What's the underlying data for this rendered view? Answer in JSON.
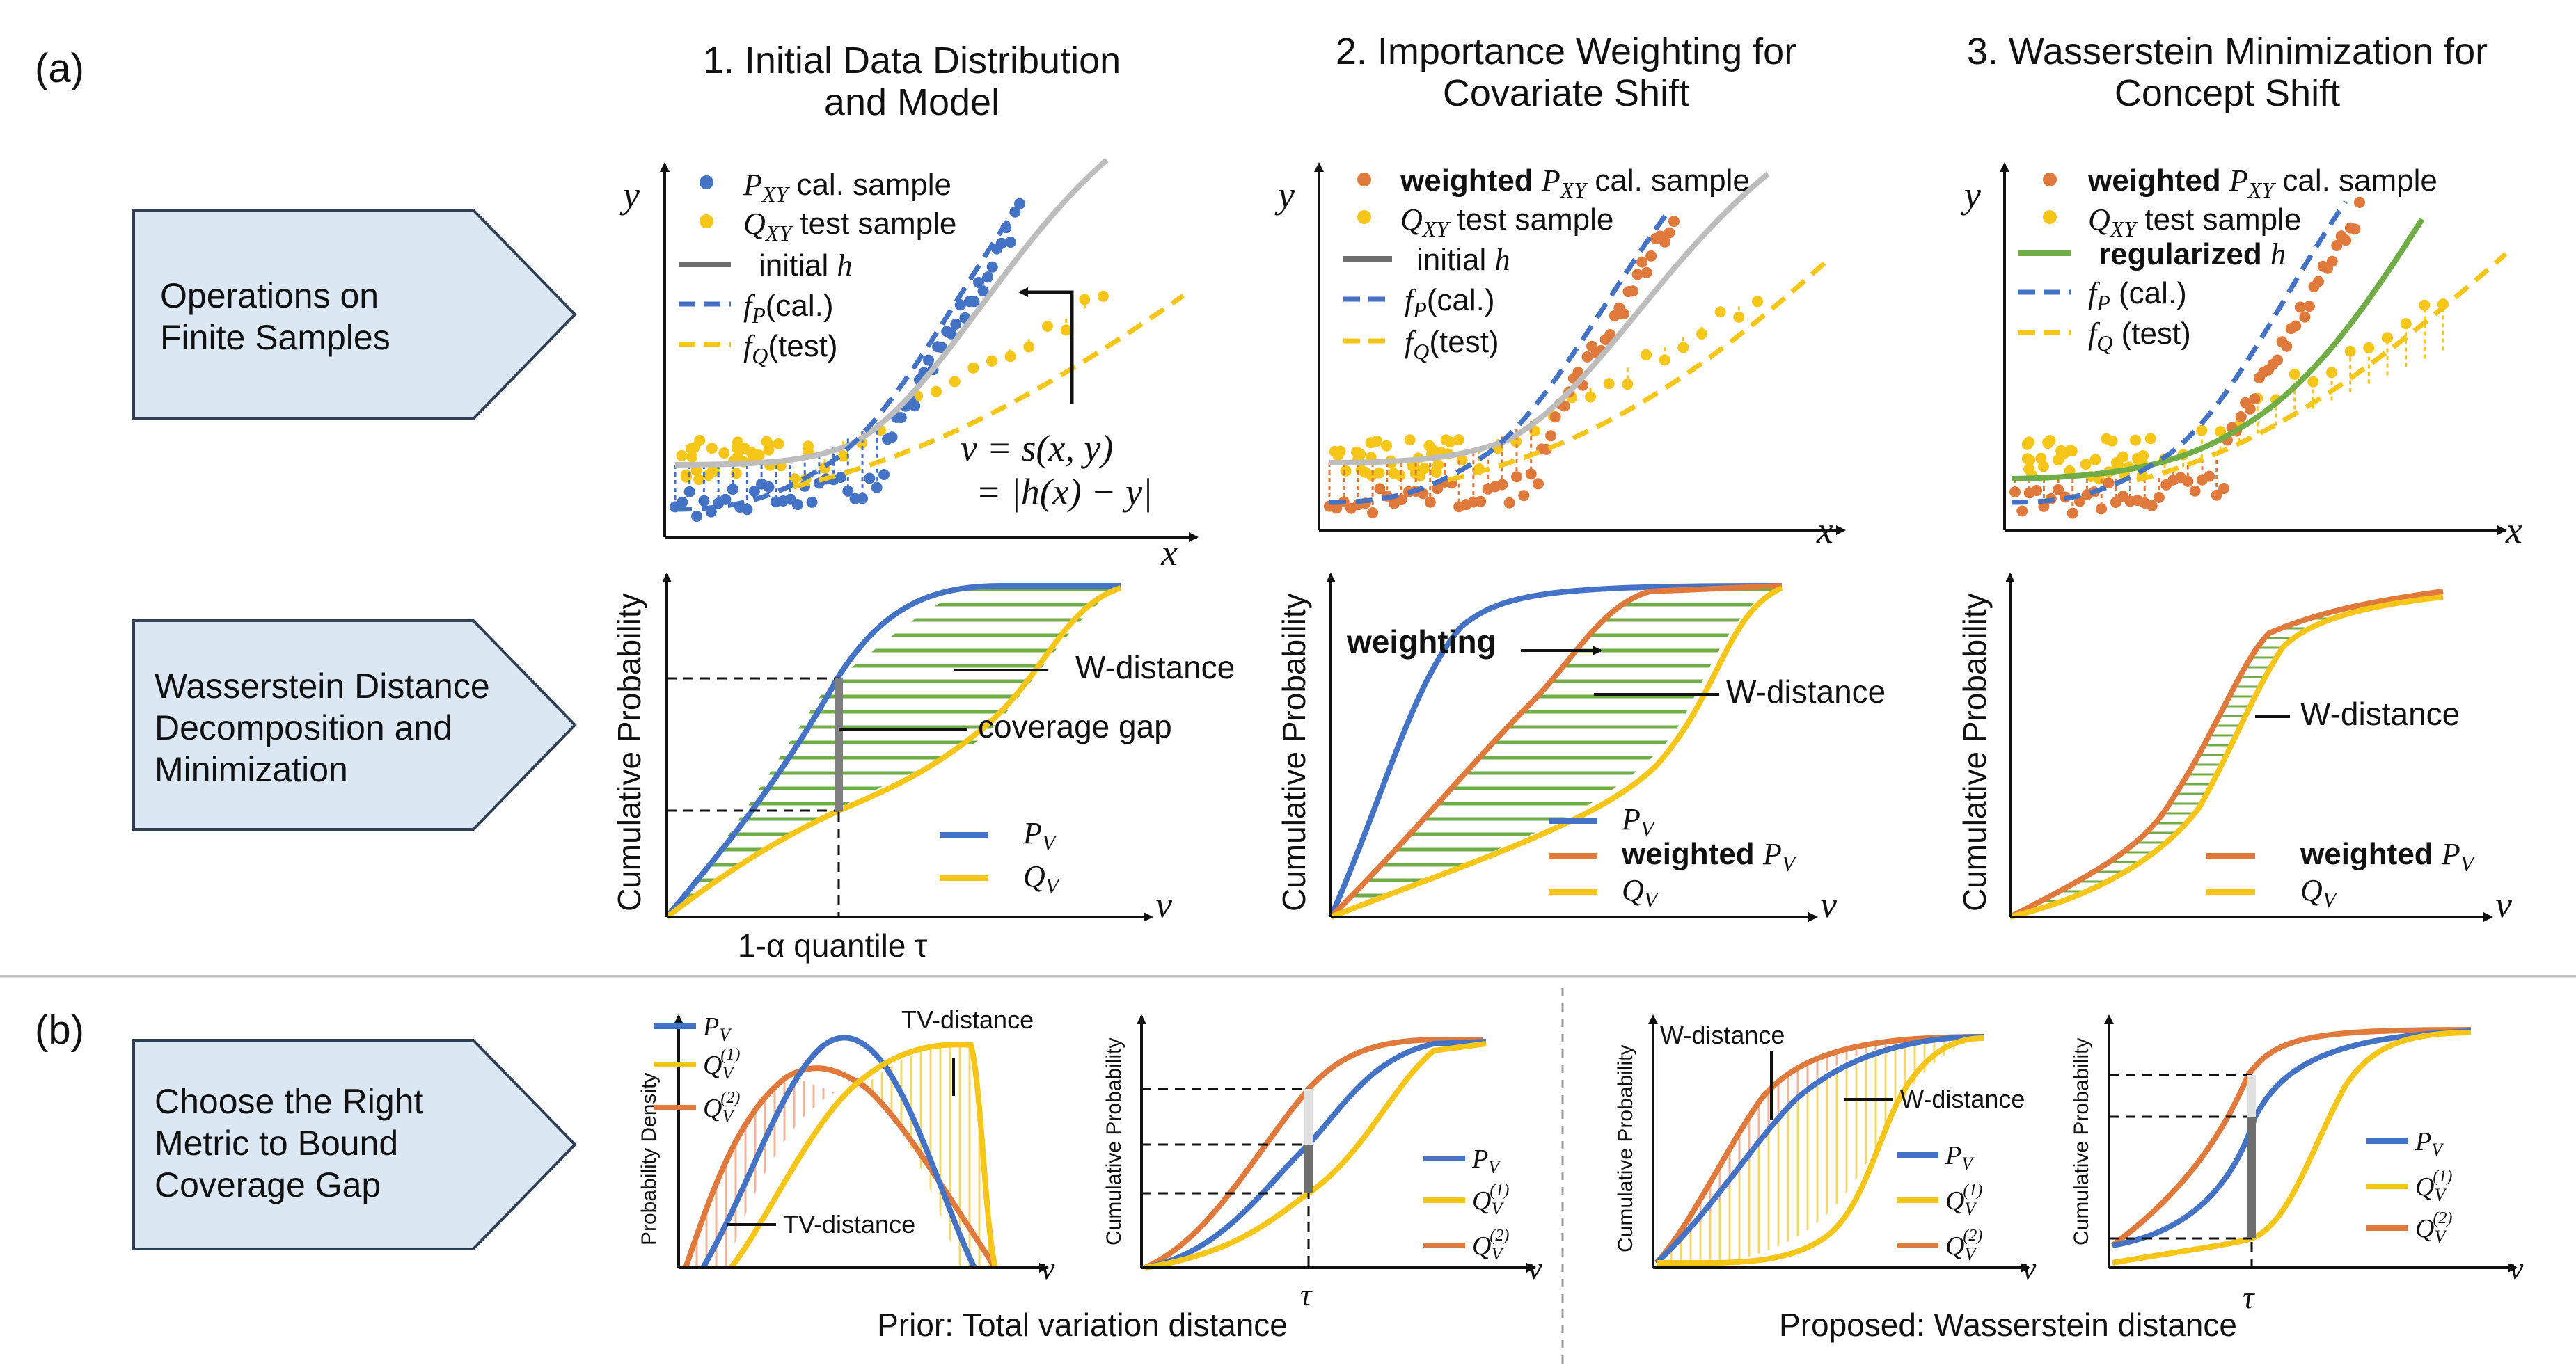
{
  "panel_a_label": "(a)",
  "panel_b_label": "(b)",
  "row_labels": {
    "r1": [
      "Operations on",
      "Finite Samples"
    ],
    "r2": [
      "Wasserstein Distance",
      "Decomposition and",
      "Minimization"
    ],
    "r3": [
      "Choose the Right",
      "Metric to Bound",
      "Coverage Gap"
    ]
  },
  "columns": {
    "c1": [
      "1.    Initial Data Distribution",
      "and Model"
    ],
    "c2": [
      "2. Importance Weighting for",
      "Covariate Shift"
    ],
    "c3": [
      "3. Wasserstein Minimization for",
      "Concept Shift"
    ]
  },
  "axis": {
    "x": "x",
    "y": "y",
    "v": "v",
    "cum_prob": "Cumulative Probability",
    "prob_density": "Probability Density",
    "tau": "τ"
  },
  "legend1": {
    "p_cal": "P",
    "p_cal_sub": "XY",
    "p_cal_rest": " cal. sample",
    "q_test": "Q",
    "q_test_sub": "XY",
    "q_test_rest": " test sample",
    "initial_h": "initial ",
    "h": "h",
    "fp": "f",
    "fp_sub": "P",
    "fp_rest": "(cal.)",
    "fq": "f",
    "fq_sub": "Q",
    "fq_rest": "(test)"
  },
  "legend2": {
    "weighted": "weighted ",
    "regularized": "regularized ",
    "fp_rest": " (cal.)",
    "fq_rest": " (test)"
  },
  "score_formula": {
    "line1": "v = s(x, y)",
    "line2": "= |h(x) − y|"
  },
  "annotations": {
    "w_distance": "W-distance",
    "coverage_gap": "coverage gap",
    "quantile": "1-α quantile τ",
    "weighting": "weighting",
    "tv_distance": "TV-distance"
  },
  "cdf_legend": {
    "pv": "P",
    "qv": "Q",
    "sub_v": "V",
    "weighted_pv": "weighted "
  },
  "b_captions": {
    "prior": "Prior: Total variation distance",
    "proposed": "Proposed: Wasserstein distance"
  },
  "b_legend": {
    "q1_sup": "(1)",
    "q2_sup": "(2)"
  },
  "colors": {
    "blue": "#4472c4",
    "yellow": "#f5c518",
    "orange": "#e07a3c",
    "gray": "#a6a6a6",
    "dark_gray": "#6e6e6e",
    "green": "#70ad47",
    "box_fill": "#dbe8f4"
  }
}
